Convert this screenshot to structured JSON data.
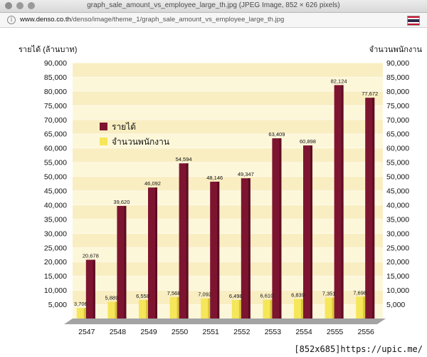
{
  "window": {
    "title": "graph_sale_amount_vs_employee_large_th.jpg (JPEG Image, 852 × 626 pixels)"
  },
  "address_bar": {
    "url_host": "www.denso.co.th",
    "url_path": "/denso/image/theme_1/graph_sale_amount_vs_employee_large_th.jpg",
    "info_icon": "info-circle-icon",
    "flag_icon": "thailand-flag-icon"
  },
  "watermark": "[852x685]https://upic.me/",
  "colors": {
    "revenue": "#7d1531",
    "employees": "#f5e65a",
    "band_light": "#fdf7da",
    "band_dark": "#f9eec2",
    "floor": "#a3a3a3"
  },
  "chart_data": {
    "type": "bar",
    "ylabel": "รายได้ (ล้านบาท)",
    "y2label": "จำนวนพนักงาน",
    "categories": [
      "2547",
      "2548",
      "2549",
      "2550",
      "2551",
      "2552",
      "2553",
      "2554",
      "2555",
      "2556"
    ],
    "series": [
      {
        "name": "รายได้",
        "values": [
          20678,
          39620,
          46092,
          54594,
          48146,
          49347,
          63409,
          60898,
          82124,
          77672
        ]
      },
      {
        "name": "จำนวนพนักงาน",
        "values": [
          3706,
          5889,
          6558,
          7568,
          7092,
          6498,
          6610,
          6839,
          7351,
          7698
        ]
      }
    ],
    "ylim": [
      0,
      90000
    ],
    "y_ticks": [
      "5,000",
      "10,000",
      "15,000",
      "20,000",
      "25,000",
      "30,000",
      "35,000",
      "40,000",
      "45,000",
      "50,000",
      "55,000",
      "60,000",
      "65,000",
      "70,000",
      "75,000",
      "80,000",
      "85,000",
      "90,000"
    ],
    "data_labels": {
      "revenue": [
        "20,678",
        "39,620",
        "46,092",
        "54,594",
        "48,146",
        "49,347",
        "63,409",
        "60,898",
        "82,124",
        "77,672"
      ],
      "employees": [
        "3,706",
        "5,889",
        "6,558",
        "7,568",
        "7,092",
        "6,498",
        "6,610",
        "6,839",
        "7,351",
        "7,698"
      ]
    },
    "legend_position": "upper-left",
    "grid": true
  }
}
